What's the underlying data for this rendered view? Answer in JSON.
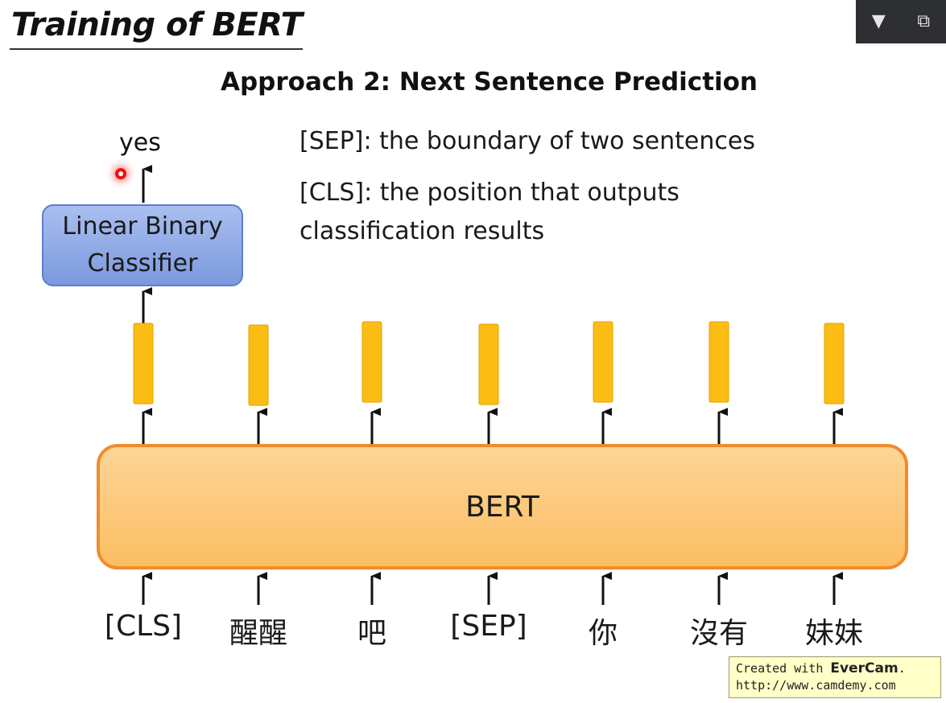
{
  "slide": {
    "title": "Training of BERT",
    "subtitle": "Approach 2: Next Sentence Prediction",
    "notes": {
      "sep": "[SEP]: the boundary of two sentences",
      "cls_line1": "[CLS]: the position that outputs",
      "cls_line2": "classification results"
    },
    "output_label": "yes",
    "classifier": {
      "line1": "Linear Binary",
      "line2": "Classifier"
    },
    "model_label": "BERT",
    "tokens": [
      "[CLS]",
      "醒醒",
      "吧",
      "[SEP]",
      "你",
      "沒有",
      "妹妹"
    ]
  },
  "toolbar": {
    "dropdown_icon": "triangle-down-icon",
    "restore_icon": "window-restore-icon"
  },
  "watermark": {
    "prefix": "Created with ",
    "brand": "EverCam",
    "suffix": ".",
    "url": "http://www.camdemy.com"
  },
  "colors": {
    "embedding": "#fbbd13",
    "bert_fill": "#fcc777",
    "bert_border": "#f08c2c",
    "classifier_fill": "#8fa9e6",
    "classifier_border": "#5d7fcf"
  }
}
